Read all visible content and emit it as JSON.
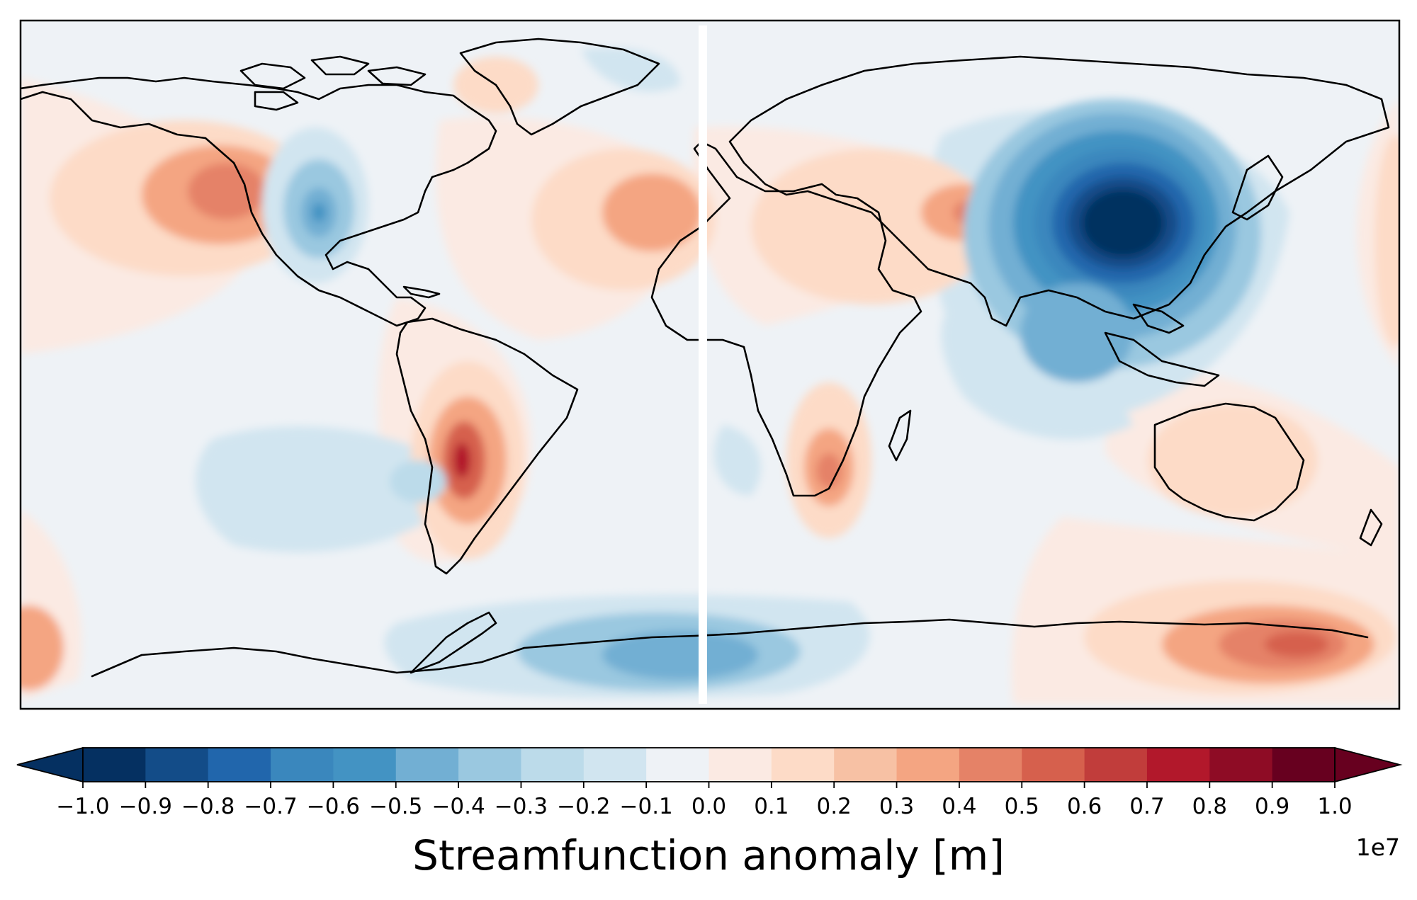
{
  "map": {
    "projection": "plate-carree",
    "field": "streamfunction-anomaly",
    "colormap": "RdBu_r",
    "palette": {
      "ocean_base": "#eef2f6",
      "coastline": "#000000",
      "seam": "#ffffff"
    },
    "features": [
      {
        "name": "east-asia-low",
        "sign": "negative",
        "lon": 105,
        "lat": 32
      },
      {
        "name": "north-atlantic-low",
        "sign": "negative",
        "lon": -72,
        "lat": 38
      },
      {
        "name": "antarctic-low",
        "sign": "negative",
        "lon": -5,
        "lat": -73
      },
      {
        "name": "south-pacific-low",
        "sign": "negative",
        "lon": -100,
        "lat": -30
      },
      {
        "name": "south-america-high",
        "sign": "positive",
        "lon": -60,
        "lat": -28
      },
      {
        "name": "southern-africa-high",
        "sign": "positive",
        "lon": 30,
        "lat": -27
      },
      {
        "name": "north-pacific-high",
        "sign": "positive",
        "lon": -140,
        "lat": 42
      },
      {
        "name": "north-atlantic-high",
        "sign": "positive",
        "lon": -10,
        "lat": 35
      },
      {
        "name": "central-asia-high",
        "sign": "positive",
        "lon": 55,
        "lat": 38
      },
      {
        "name": "southern-ocean-high",
        "sign": "positive",
        "lon": 150,
        "lat": -65
      },
      {
        "name": "australia-high",
        "sign": "positive",
        "lon": 130,
        "lat": -25
      }
    ]
  },
  "colorbar": {
    "label": "Streamfunction anomaly [m]",
    "multiplier": "1e7",
    "min": -1.0,
    "max": 1.0,
    "step": 0.1,
    "extend": "both",
    "ticks": [
      "−1.0",
      "−0.9",
      "−0.8",
      "−0.7",
      "−0.6",
      "−0.5",
      "−0.4",
      "−0.3",
      "−0.2",
      "−0.1",
      "0.0",
      "0.1",
      "0.2",
      "0.3",
      "0.4",
      "0.5",
      "0.6",
      "0.7",
      "0.8",
      "0.9",
      "1.0"
    ],
    "colors": [
      "#053061",
      "#134c88",
      "#2166ac",
      "#3a87bd",
      "#4393c3",
      "#72afd3",
      "#9ac8e0",
      "#bcdbea",
      "#d1e5f0",
      "#eef2f6",
      "#fbeae3",
      "#fddbc7",
      "#f7c1a4",
      "#f4a582",
      "#e58267",
      "#d6604d",
      "#c13d3b",
      "#b2182b",
      "#8e0c25",
      "#67001f"
    ]
  }
}
